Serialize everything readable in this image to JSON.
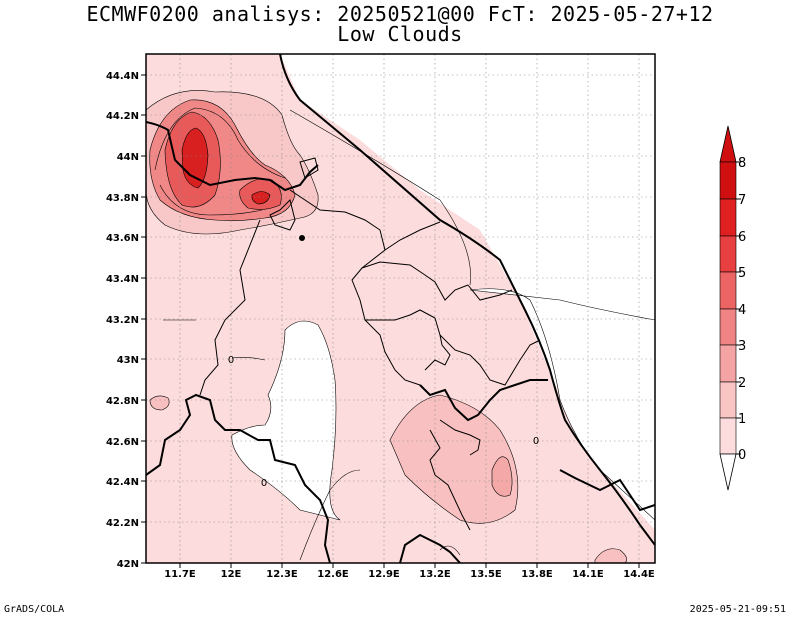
{
  "title": {
    "line1": "ECMWF0200 analisys: 20250521@00 FcT: 2025-05-27+12",
    "line2": "Low Clouds"
  },
  "footer": {
    "left": "GrADS/COLA",
    "right": "2025-05-21-09:51"
  },
  "map": {
    "lon_ticks": [
      "11.7E",
      "12E",
      "12.3E",
      "12.6E",
      "12.9E",
      "13.2E",
      "13.5E",
      "13.8E",
      "14.1E",
      "14.4E"
    ],
    "lat_ticks": [
      "44.4N",
      "44.2N",
      "44N",
      "43.8N",
      "43.6N",
      "43.4N",
      "43.2N",
      "43N",
      "42.8N",
      "42.6N",
      "42.4N",
      "42.2N",
      "42N"
    ],
    "contour_labels": [
      "0",
      "0",
      "0"
    ],
    "shade_colors": [
      "#ffffff",
      "#fcdcdc",
      "#f8b8b8",
      "#f08888",
      "#e86060",
      "#e03a3a",
      "#d82020",
      "#c81818"
    ]
  },
  "colorbar": {
    "levels": [
      "0",
      "1",
      "2",
      "3",
      "4",
      "5",
      "6",
      "7",
      "8"
    ],
    "colors": [
      "#ffffff",
      "#fcdcdc",
      "#f8c4c4",
      "#f4a4a4",
      "#f08484",
      "#ec6464",
      "#e84040",
      "#e02020",
      "#d01010"
    ]
  }
}
